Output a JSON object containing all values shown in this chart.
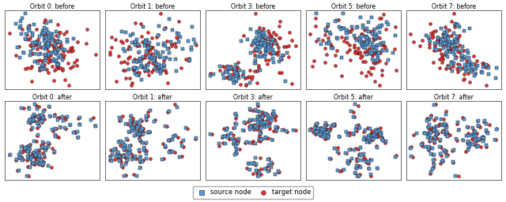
{
  "orbit_labels": [
    "Orbit 0",
    "Orbit 1",
    "Orbit 3",
    "Orbit 5",
    "Orbit 7"
  ],
  "row_labels": [
    "before",
    "after"
  ],
  "source_color": "#5b9bd5",
  "target_color": "#e83030",
  "source_edge": "#111111",
  "target_edge": "#111111",
  "marker_size_src": 9,
  "marker_size_tgt": 8,
  "n_points": 100,
  "title_fontsize": 5.5,
  "legend_fontsize": 6,
  "figsize": [
    6.4,
    2.56
  ],
  "dpi": 100
}
